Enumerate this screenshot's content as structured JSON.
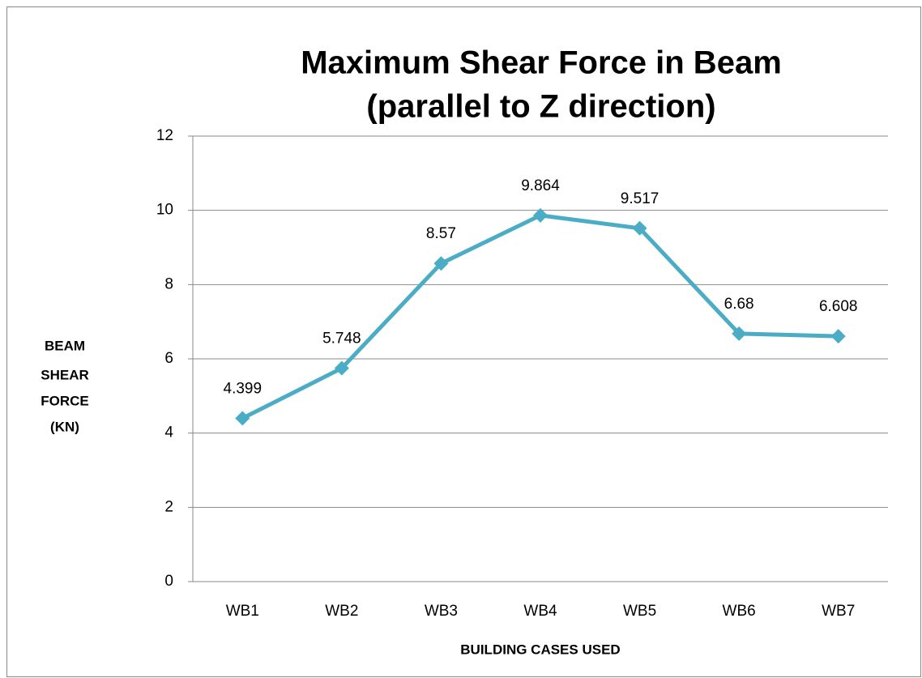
{
  "chart_data": {
    "type": "line",
    "title": [
      "Maximum Shear Force in Beam",
      "(parallel to Z direction)"
    ],
    "y_label": [
      "BEAM",
      "SHEAR",
      "FORCE",
      "(KN)"
    ],
    "x_label": "BUILDING CASES USED",
    "categories": [
      "WB1",
      "WB2",
      "WB3",
      "WB4",
      "WB5",
      "WB6",
      "WB7"
    ],
    "series": [
      {
        "name": "Maximum Shear Force",
        "color": "#4bacc6",
        "values": [
          4.399,
          5.748,
          8.57,
          9.864,
          9.517,
          6.68,
          6.608
        ]
      }
    ],
    "ylim": [
      0,
      12
    ],
    "yticks": [
      0,
      2,
      4,
      6,
      8,
      10,
      12
    ],
    "grid": true
  }
}
